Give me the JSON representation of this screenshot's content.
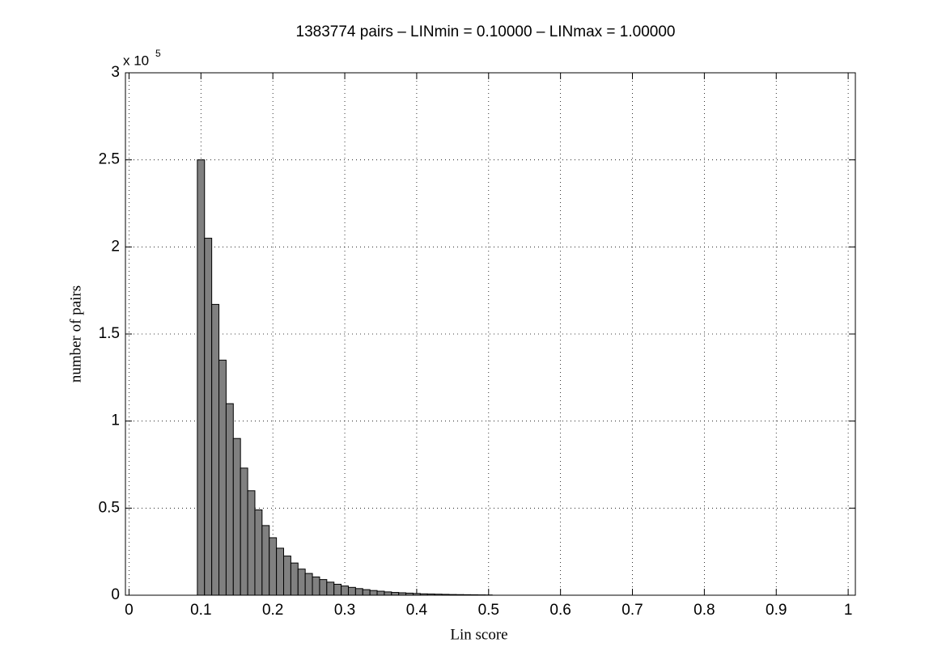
{
  "chart_data": {
    "type": "histogram",
    "title": "1383774    pairs   – LINmin = 0.10000 – LINmax = 1.00000",
    "xlabel": "Lin score",
    "ylabel": "number of pairs",
    "y_multiplier": {
      "base": "x 10",
      "exponent": "5"
    },
    "bins": [
      0.095,
      0.105,
      0.115,
      0.125,
      0.135,
      0.145,
      0.155,
      0.165,
      0.175,
      0.185,
      0.195,
      0.205,
      0.215,
      0.225,
      0.235,
      0.245,
      0.255,
      0.265,
      0.275,
      0.285,
      0.295,
      0.305,
      0.315,
      0.325,
      0.335,
      0.345,
      0.355,
      0.365,
      0.375,
      0.385,
      0.395,
      0.405,
      0.415,
      0.425,
      0.435,
      0.445,
      0.455,
      0.465,
      0.475,
      0.485,
      0.495,
      0.505
    ],
    "values": [
      2.5,
      2.05,
      1.67,
      1.35,
      1.1,
      0.9,
      0.73,
      0.6,
      0.49,
      0.4,
      0.33,
      0.27,
      0.225,
      0.185,
      0.15,
      0.125,
      0.105,
      0.09,
      0.075,
      0.063,
      0.053,
      0.045,
      0.038,
      0.032,
      0.027,
      0.023,
      0.019,
      0.016,
      0.014,
      0.012,
      0.01,
      0.008,
      0.007,
      0.006,
      0.005,
      0.004,
      0.0035,
      0.003,
      0.0025,
      0.002,
      0.0015
    ],
    "color": "#808080",
    "xlim": [
      -0.005,
      1.01
    ],
    "ylim": [
      0,
      3
    ],
    "xticks": [
      0,
      0.1,
      0.2,
      0.3,
      0.4,
      0.5,
      0.6,
      0.7,
      0.8,
      0.9,
      1
    ],
    "yticks": [
      0,
      0.5,
      1,
      1.5,
      2,
      2.5,
      3
    ],
    "grid": true
  }
}
